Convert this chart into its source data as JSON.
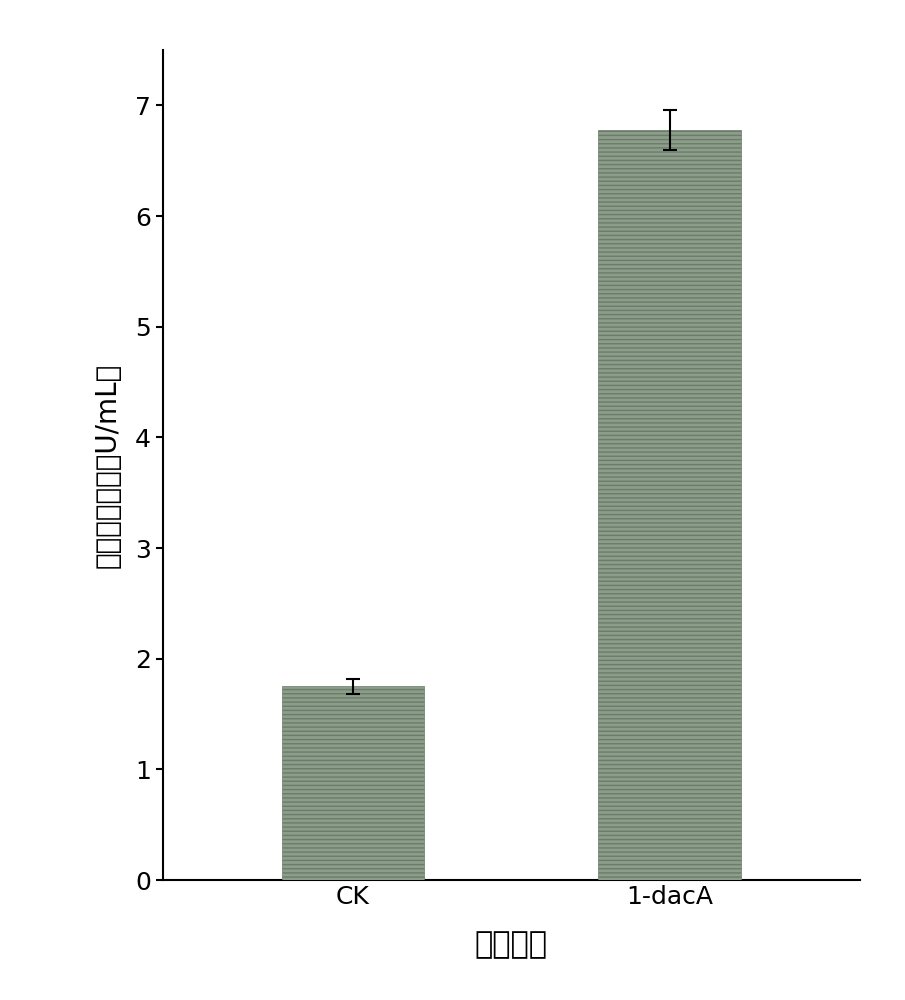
{
  "categories": [
    "CK",
    "1-dacA"
  ],
  "values": [
    1.75,
    6.78
  ],
  "errors": [
    0.07,
    0.18
  ],
  "bar_color": "#8c9e8a",
  "bar_edgecolor": "#6b7d6a",
  "bar_width": 0.45,
  "ylim": [
    0,
    7.5
  ],
  "yticks": [
    0,
    1,
    2,
    3,
    4,
    5,
    6,
    7
  ],
  "ylabel": "胞外淀粉酶活（U/mL）",
  "xlabel": "不同菌株",
  "ylabel_fontsize": 20,
  "xlabel_fontsize": 22,
  "tick_fontsize": 18,
  "background_color": "#ffffff",
  "error_capsize": 5,
  "error_linewidth": 1.5
}
